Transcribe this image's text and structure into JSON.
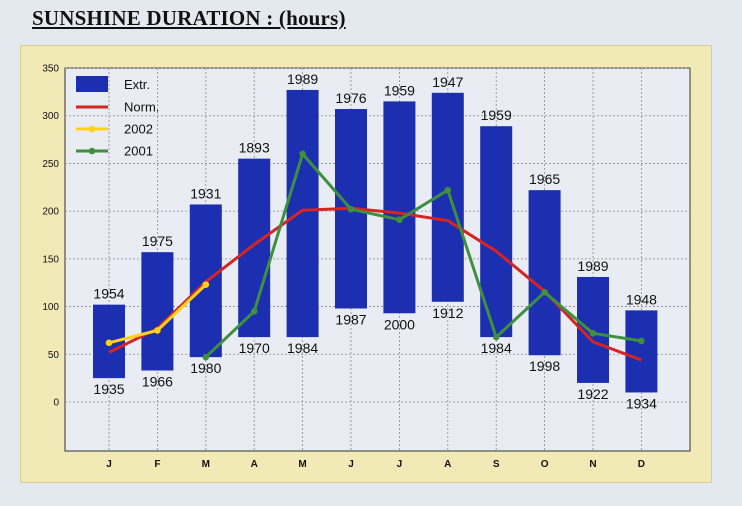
{
  "page": {
    "title": "SUNSHINE DURATION : (hours)"
  },
  "chart_data": {
    "type": "bar",
    "categories": [
      "J",
      "F",
      "M",
      "A",
      "M",
      "J",
      "J",
      "A",
      "S",
      "O",
      "N",
      "D"
    ],
    "ylim": [
      0,
      350
    ],
    "yticks": [
      0,
      50,
      100,
      150,
      200,
      250,
      300,
      350
    ],
    "grid": true,
    "legend_position": "top-left",
    "extremes": {
      "name": "Extr.",
      "color": "#1c2fb0",
      "max": [
        102,
        157,
        207,
        255,
        327,
        307,
        315,
        324,
        289,
        222,
        131,
        96
      ],
      "min": [
        25,
        33,
        47,
        68,
        68,
        98,
        93,
        105,
        68,
        49,
        20,
        10
      ],
      "max_year": [
        "1954",
        "1975",
        "1931",
        "1893",
        "1989",
        "1976",
        "1959",
        "1947",
        "1959",
        "1965",
        "1989",
        "1948"
      ],
      "min_year": [
        "1935",
        "1966",
        "1980",
        "1970",
        "1984",
        "1987",
        "2000",
        "1912",
        "1984",
        "1998",
        "1922",
        "1934"
      ]
    },
    "series": [
      {
        "name": "Norm.",
        "color": "#d42424",
        "marker": false,
        "values": [
          52,
          77,
          126,
          165,
          201,
          203,
          198,
          190,
          158,
          116,
          63,
          44
        ]
      },
      {
        "name": "2002",
        "color": "#ffd21a",
        "marker": true,
        "values": [
          62,
          75,
          123,
          null,
          null,
          null,
          null,
          null,
          null,
          null,
          null,
          null
        ]
      },
      {
        "name": "2001",
        "color": "#3f8f3f",
        "marker": true,
        "values": [
          null,
          null,
          47,
          95,
          260,
          202,
          191,
          222,
          68,
          115,
          72,
          64
        ]
      }
    ]
  }
}
